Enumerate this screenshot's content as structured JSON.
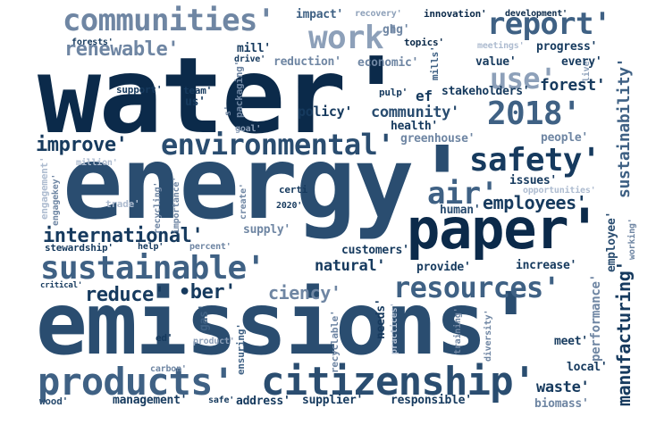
{
  "words": {
    "water": "water'",
    "energy": "energy'",
    "emissions": "emissions'",
    "paper": "paper'",
    "citizenship": "citizenship'",
    "products": "products'",
    "sustainable": "sustainable'",
    "environmental": "environmental'",
    "safety": "safety'",
    "communities": "communities'",
    "report": "report'",
    "work": "work'",
    "use": "use'",
    "y2018": "2018'",
    "resources": "resources'",
    "air": "air'",
    "employees": "employees'",
    "international": "international'",
    "renewable": "renewable'",
    "improve": "improve'",
    "reduce": "reduce'",
    "ber": "•ber'",
    "ciency": "ciency'",
    "community": "community'",
    "forest": "forest'",
    "natural": "natural'",
    "waste": "waste'",
    "manufacturing": "manufacturing'",
    "sustainability": "sustainability'",
    "impact": "impact'",
    "recovery": "recovery'",
    "innovation": "innovation'",
    "development": "development'",
    "ghg": "ghg'",
    "topics": "topics'",
    "meetings": "meetings'",
    "progress": "progress'",
    "value": "value'",
    "every": "every'",
    "live": "live'",
    "forests": "forests'",
    "mill": "mill'",
    "drive": "drive'",
    "reduction": "reduction'",
    "economic": "economic'",
    "mills": "mills'",
    "stakeholders": "stakeholders'",
    "support": "support'",
    "team": "team'",
    "us": "us'",
    "packaging": "packaging'",
    "pulp": "pulp'",
    "policy": "policy'",
    "health": "health'",
    "ef": "ef",
    "greenhouse": "greenhouse'",
    "people": "people'",
    "goal": "goal'",
    "million": "million'",
    "engagement": "engagement'",
    "engagekey": "engagekey'",
    "trade": "trade'",
    "recycling": "recycling'",
    "importance": "importance'",
    "create": "create'",
    "certi": "certi",
    "y2020": "2020'",
    "issues": "issues'",
    "opportunities": "opportunities'",
    "human": "human'",
    "employee": "employee'",
    "working": "working'",
    "stewardship": "stewardship'",
    "help": "help'",
    "percent": "percent'",
    "supply": "supply'",
    "customers": "customers'",
    "provide": "provide'",
    "increase": "increase'",
    "critical": "critical'",
    "gas": "gas'",
    "ed": "ed'",
    "product": "product'",
    "ensuring": "ensuring'",
    "recyclable": "recyclable'",
    "needs": "needs'",
    "practices": "practices'",
    "training": "training'",
    "diversity": "diversity'",
    "meet": "meet'",
    "performance": "performance'",
    "local": "local'",
    "carbon": "carbon'",
    "wood": "wood'",
    "management": "management'",
    "safe": "safe'",
    "address": "address'",
    "supplier": "supplier'",
    "responsible": "responsible'",
    "biomass": "biomass'",
    "s": "s'"
  }
}
